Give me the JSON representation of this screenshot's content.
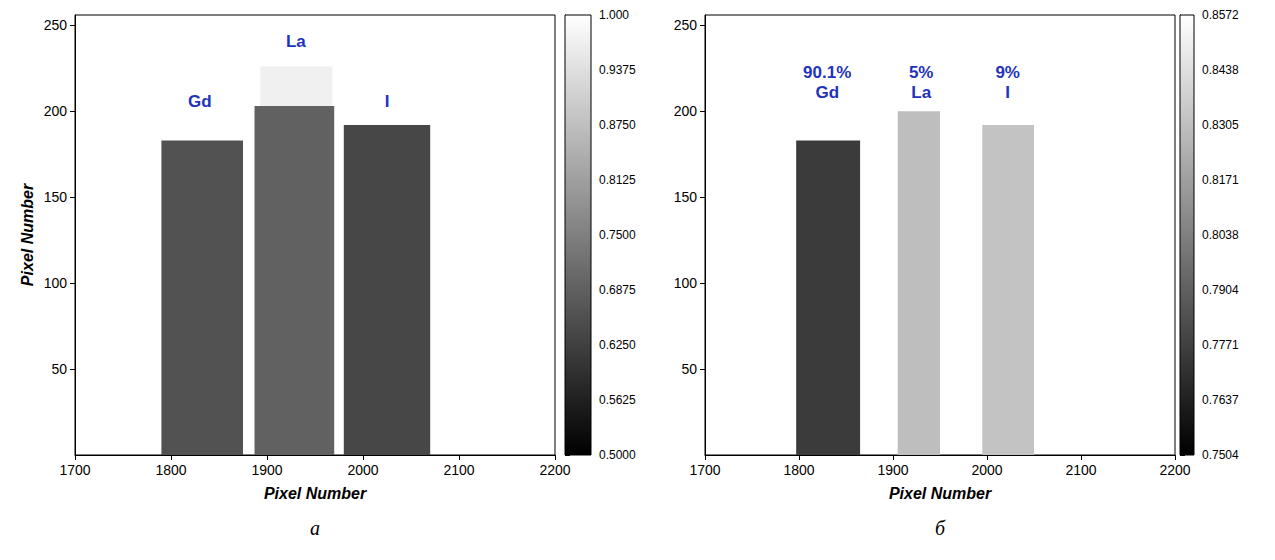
{
  "chart_data": [
    {
      "type": "heatmap",
      "panel_label": "a",
      "x_label": "Pixel Number",
      "y_label": "Pixel Number",
      "xlim": [
        1700,
        2200
      ],
      "xticks": [
        1700,
        1800,
        1900,
        2000,
        2100,
        2200
      ],
      "ylim": [
        0,
        256
      ],
      "yticks": [
        50,
        100,
        150,
        200,
        250
      ],
      "background": 1.0,
      "regions": [
        {
          "x": [
            1790,
            1875
          ],
          "y": [
            0,
            183
          ],
          "value": 0.66
        },
        {
          "x": [
            1887,
            1970
          ],
          "y": [
            0,
            203
          ],
          "value": 0.69
        },
        {
          "x": [
            1893,
            1968
          ],
          "y": [
            203,
            226
          ],
          "value": 0.97
        },
        {
          "x": [
            1980,
            2070
          ],
          "y": [
            0,
            192
          ],
          "value": 0.64
        }
      ],
      "colorbar": {
        "range": [
          0.5,
          1.0
        ],
        "ticks": [
          {
            "value": 0.5,
            "label": "0.5000"
          },
          0.5625,
          {
            "value": 0.625,
            "label": "0.6250"
          },
          0.6875,
          {
            "value": 0.75,
            "label": "0.7500"
          },
          0.8125,
          {
            "value": 0.875,
            "label": "0.8750"
          },
          0.9375,
          {
            "value": 1.0,
            "label": "1.000"
          }
        ]
      },
      "annotations": [
        {
          "text": "Gd",
          "x": 1830,
          "y": 200
        },
        {
          "text": "La",
          "x": 1930,
          "y": 235
        },
        {
          "text": "I",
          "x": 2025,
          "y": 200
        }
      ]
    },
    {
      "type": "heatmap",
      "panel_label": "б",
      "x_label": "Pixel Number",
      "xlim": [
        1700,
        2200
      ],
      "xticks": [
        1700,
        1800,
        1900,
        2000,
        2100,
        2200
      ],
      "ylim": [
        0,
        256
      ],
      "yticks": [
        50,
        100,
        150,
        200,
        250
      ],
      "background": 0.8572,
      "regions": [
        {
          "x": [
            1797,
            1865
          ],
          "y": [
            0,
            183
          ],
          "value": 0.775
        },
        {
          "x": [
            1905,
            1950
          ],
          "y": [
            0,
            200
          ],
          "value": 0.83
        },
        {
          "x": [
            1995,
            2050
          ],
          "y": [
            0,
            192
          ],
          "value": 0.832
        }
      ],
      "colorbar": {
        "range": [
          0.7504,
          0.8572
        ],
        "ticks": [
          0.7504,
          0.7637,
          0.7771,
          0.7904,
          0.8038,
          0.8171,
          0.8305,
          0.8438,
          0.8572
        ]
      },
      "annotations": [
        {
          "text": "90.1%\nGd",
          "x": 1830,
          "y": 205
        },
        {
          "text": "5%\nLa",
          "x": 1930,
          "y": 205
        },
        {
          "text": "9%\nI",
          "x": 2022,
          "y": 205
        }
      ]
    }
  ]
}
